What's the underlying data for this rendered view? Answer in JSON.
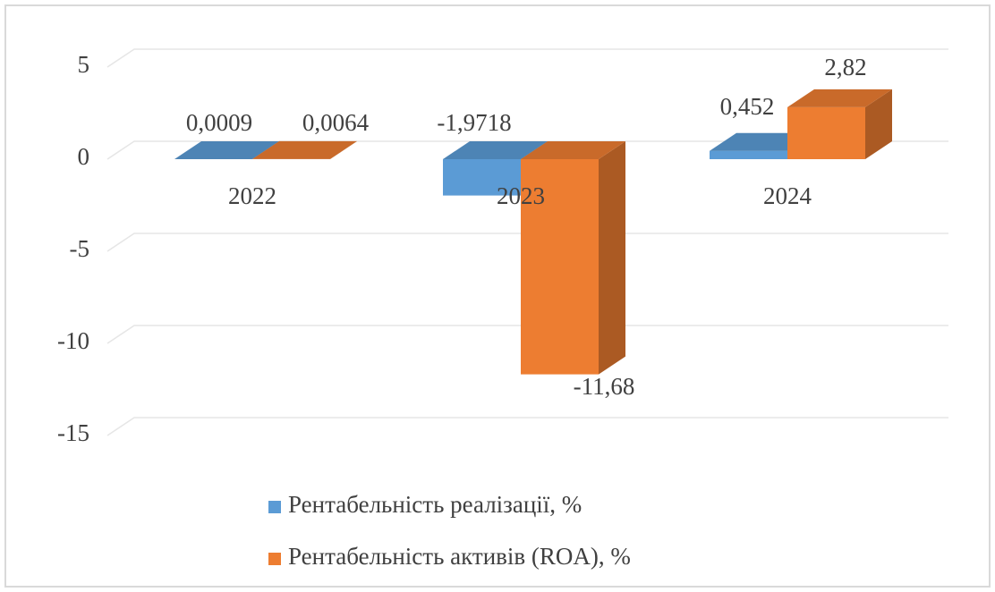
{
  "chart_data": {
    "type": "bar3d",
    "categories": [
      "2022",
      "2023",
      "2024"
    ],
    "series": [
      {
        "name": "Рентабельність реалізації, %",
        "color": "#5b9bd5",
        "values": [
          0.0009,
          -1.9718,
          0.452
        ],
        "value_labels": [
          "0,0009",
          "-1,9718",
          "0,452"
        ]
      },
      {
        "name": "Рентабельність активів (ROA), %",
        "color": "#ed7d31",
        "values": [
          0.0064,
          -11.68,
          2.82
        ],
        "value_labels": [
          "0,0064",
          "-11,68",
          "2,82"
        ]
      }
    ],
    "ylim": [
      -15,
      5
    ],
    "yticks": [
      5,
      0,
      -5,
      -10,
      -15
    ],
    "grid": true
  }
}
